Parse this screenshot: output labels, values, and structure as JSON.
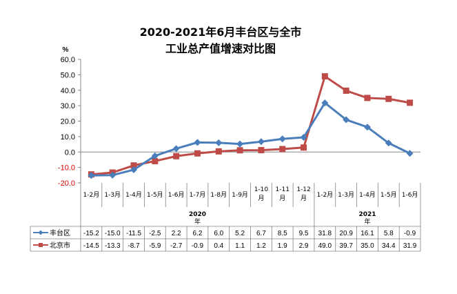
{
  "chart_data": {
    "type": "line",
    "title_line1": "2020-2021年6月丰台区与全市",
    "title_line2": "工业总产值增速对比图",
    "ylabel": "%",
    "ylim": [
      -20,
      60
    ],
    "yticks": [
      "60.0",
      "50.0",
      "40.0",
      "30.0",
      "20.0",
      "10.0",
      "0.0",
      "-10.0",
      "-20.0"
    ],
    "zero_tick_label": "-20.0",
    "categories": [
      "1-2月",
      "1-3月",
      "1-4月",
      "1-5月",
      "1-6月",
      "1-7月",
      "1-8月",
      "1-9月",
      "1-10月",
      "1-11月",
      "1-12月",
      "1-2月",
      "1-3月",
      "1-4月",
      "1-5月",
      "1-6月"
    ],
    "year_groups": [
      {
        "year": "2020",
        "suffix": "年",
        "count": 11
      },
      {
        "year": "2021",
        "suffix": "年",
        "count": 5
      }
    ],
    "series": [
      {
        "name": "丰台区",
        "color": "#4A7EBB",
        "marker": "diamond",
        "values": [
          -15.2,
          -15.0,
          -11.5,
          -2.5,
          2.2,
          6.2,
          6.0,
          5.2,
          6.7,
          8.5,
          9.5,
          31.8,
          20.9,
          16.1,
          5.8,
          -0.9
        ],
        "labels": [
          "-15.2",
          "-15.0",
          "-11.5",
          "-2.5",
          "2.2",
          "6.2",
          "6.0",
          "5.2",
          "6.7",
          "8.5",
          "9.5",
          "31.8",
          "20.9",
          "16.1",
          "5.8",
          "-0.9"
        ]
      },
      {
        "name": "北京市",
        "color": "#BE4B48",
        "marker": "square",
        "values": [
          -14.5,
          -13.3,
          -8.7,
          -5.9,
          -2.7,
          -0.9,
          0.4,
          1.1,
          1.2,
          1.9,
          2.9,
          49.0,
          39.7,
          35.0,
          34.4,
          31.9
        ],
        "labels": [
          "-14.5",
          "-13.3",
          "-8.7",
          "-5.9",
          "-2.7",
          "-0.9",
          "0.4",
          "1.1",
          "1.2",
          "1.9",
          "2.9",
          "49.0",
          "39.7",
          "35.0",
          "34.4",
          "31.9"
        ]
      }
    ],
    "grid": false,
    "legend": "table-left"
  }
}
